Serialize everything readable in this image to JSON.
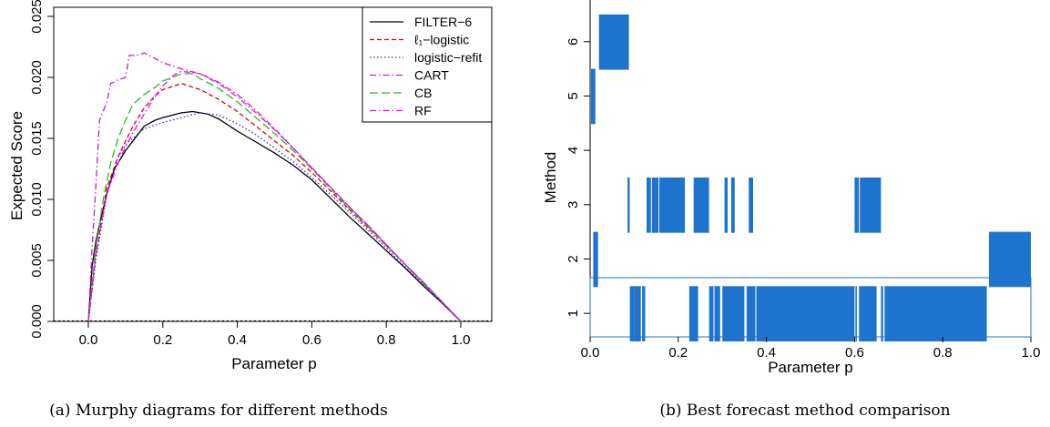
{
  "chart_data": [
    {
      "type": "line",
      "xlabel": "Parameter p",
      "ylabel": "Expected Score",
      "xlim": [
        -0.1,
        1.1
      ],
      "ylim": [
        0,
        0.025
      ],
      "xticks": [
        "0.0",
        "0.2",
        "0.4",
        "0.6",
        "0.8",
        "1.0"
      ],
      "yticks": [
        "0.000",
        "0.005",
        "0.010",
        "0.015",
        "0.020",
        "0.025"
      ],
      "legend_position": "top-right",
      "baseline": 0,
      "caption": "(a) Murphy diagrams for different methods",
      "series": [
        {
          "name": "FILTER−6",
          "color": "#000000",
          "dash": "solid",
          "points": [
            [
              0,
              0
            ],
            [
              0.01,
              0.0045
            ],
            [
              0.02,
              0.0065
            ],
            [
              0.03,
              0.008
            ],
            [
              0.05,
              0.0105
            ],
            [
              0.07,
              0.0125
            ],
            [
              0.1,
              0.014
            ],
            [
              0.13,
              0.0152
            ],
            [
              0.15,
              0.016
            ],
            [
              0.18,
              0.0165
            ],
            [
              0.2,
              0.0167
            ],
            [
              0.25,
              0.0171
            ],
            [
              0.28,
              0.0172
            ],
            [
              0.32,
              0.017
            ],
            [
              0.35,
              0.0166
            ],
            [
              0.4,
              0.0156
            ],
            [
              0.45,
              0.0147
            ],
            [
              0.5,
              0.0138
            ],
            [
              0.55,
              0.0128
            ],
            [
              0.6,
              0.0116
            ],
            [
              0.65,
              0.0101
            ],
            [
              0.7,
              0.0086
            ],
            [
              0.75,
              0.0072
            ],
            [
              0.8,
              0.0058
            ],
            [
              0.85,
              0.0044
            ],
            [
              0.9,
              0.0029
            ],
            [
              0.95,
              0.0015
            ],
            [
              1.0,
              0
            ]
          ]
        },
        {
          "name": "ℓ₁−logistic",
          "color": "#df0000",
          "dash": "dashed",
          "points": [
            [
              0,
              0
            ],
            [
              0.02,
              0.0055
            ],
            [
              0.05,
              0.011
            ],
            [
              0.08,
              0.0135
            ],
            [
              0.1,
              0.0148
            ],
            [
              0.12,
              0.016
            ],
            [
              0.15,
              0.0175
            ],
            [
              0.18,
              0.0185
            ],
            [
              0.2,
              0.019
            ],
            [
              0.25,
              0.0195
            ],
            [
              0.3,
              0.019
            ],
            [
              0.35,
              0.0182
            ],
            [
              0.4,
              0.0172
            ],
            [
              0.45,
              0.016
            ],
            [
              0.5,
              0.0148
            ],
            [
              0.55,
              0.0136
            ],
            [
              0.6,
              0.0122
            ],
            [
              0.65,
              0.0107
            ],
            [
              0.7,
              0.0092
            ],
            [
              0.75,
              0.0077
            ],
            [
              0.8,
              0.0062
            ],
            [
              0.85,
              0.0047
            ],
            [
              0.9,
              0.0031
            ],
            [
              0.95,
              0.0016
            ],
            [
              1.0,
              0
            ]
          ]
        },
        {
          "name": "logistic−refit",
          "color": "#3030cc",
          "dash": "dotted",
          "points": [
            [
              0,
              0
            ],
            [
              0.02,
              0.005
            ],
            [
              0.05,
              0.0105
            ],
            [
              0.08,
              0.0135
            ],
            [
              0.1,
              0.0145
            ],
            [
              0.15,
              0.0158
            ],
            [
              0.2,
              0.0163
            ],
            [
              0.25,
              0.0167
            ],
            [
              0.3,
              0.0171
            ],
            [
              0.35,
              0.0169
            ],
            [
              0.4,
              0.0162
            ],
            [
              0.45,
              0.0153
            ],
            [
              0.5,
              0.0142
            ],
            [
              0.55,
              0.0131
            ],
            [
              0.6,
              0.0118
            ],
            [
              0.65,
              0.0104
            ],
            [
              0.7,
              0.009
            ],
            [
              0.75,
              0.0075
            ],
            [
              0.8,
              0.006
            ],
            [
              0.85,
              0.0045
            ],
            [
              0.9,
              0.003
            ],
            [
              0.95,
              0.0015
            ],
            [
              1.0,
              0
            ]
          ]
        },
        {
          "name": "CART",
          "color": "#c020c0",
          "dash": "dashdot",
          "points": [
            [
              0,
              0
            ],
            [
              0.01,
              0.006
            ],
            [
              0.02,
              0.011
            ],
            [
              0.03,
              0.0165
            ],
            [
              0.05,
              0.018
            ],
            [
              0.06,
              0.0195
            ],
            [
              0.08,
              0.0198
            ],
            [
              0.1,
              0.02
            ],
            [
              0.11,
              0.0218
            ],
            [
              0.13,
              0.0218
            ],
            [
              0.15,
              0.022
            ],
            [
              0.17,
              0.0217
            ],
            [
              0.2,
              0.0212
            ],
            [
              0.25,
              0.0207
            ],
            [
              0.3,
              0.0203
            ],
            [
              0.35,
              0.0196
            ],
            [
              0.4,
              0.0186
            ],
            [
              0.45,
              0.0173
            ],
            [
              0.5,
              0.0158
            ],
            [
              0.55,
              0.0142
            ],
            [
              0.6,
              0.0126
            ],
            [
              0.65,
              0.011
            ],
            [
              0.7,
              0.0094
            ],
            [
              0.75,
              0.0079
            ],
            [
              0.8,
              0.0063
            ],
            [
              0.85,
              0.0047
            ],
            [
              0.9,
              0.0032
            ],
            [
              0.95,
              0.0016
            ],
            [
              1.0,
              0
            ]
          ]
        },
        {
          "name": "CB",
          "color": "#22bb22",
          "dash": "longdash",
          "points": [
            [
              0,
              0
            ],
            [
              0.02,
              0.006
            ],
            [
              0.04,
              0.01
            ],
            [
              0.06,
              0.013
            ],
            [
              0.08,
              0.015
            ],
            [
              0.1,
              0.0165
            ],
            [
              0.12,
              0.0178
            ],
            [
              0.15,
              0.0186
            ],
            [
              0.18,
              0.0192
            ],
            [
              0.2,
              0.0197
            ],
            [
              0.25,
              0.0203
            ],
            [
              0.28,
              0.0203
            ],
            [
              0.3,
              0.0199
            ],
            [
              0.35,
              0.0191
            ],
            [
              0.4,
              0.018
            ],
            [
              0.45,
              0.0167
            ],
            [
              0.5,
              0.0154
            ],
            [
              0.55,
              0.014
            ],
            [
              0.6,
              0.0125
            ],
            [
              0.65,
              0.0109
            ],
            [
              0.7,
              0.0093
            ],
            [
              0.75,
              0.0078
            ],
            [
              0.8,
              0.0062
            ],
            [
              0.85,
              0.0047
            ],
            [
              0.9,
              0.0031
            ],
            [
              0.95,
              0.0016
            ],
            [
              1.0,
              0
            ]
          ]
        },
        {
          "name": "RF",
          "color": "#ff00ff",
          "dash": "dashdot",
          "points": [
            [
              0,
              0
            ],
            [
              0.02,
              0.0055
            ],
            [
              0.05,
              0.0105
            ],
            [
              0.08,
              0.013
            ],
            [
              0.1,
              0.0143
            ],
            [
              0.12,
              0.0155
            ],
            [
              0.15,
              0.017
            ],
            [
              0.18,
              0.0185
            ],
            [
              0.2,
              0.0193
            ],
            [
              0.23,
              0.0202
            ],
            [
              0.25,
              0.0205
            ],
            [
              0.3,
              0.0203
            ],
            [
              0.35,
              0.0195
            ],
            [
              0.4,
              0.0184
            ],
            [
              0.45,
              0.0171
            ],
            [
              0.5,
              0.0157
            ],
            [
              0.55,
              0.0142
            ],
            [
              0.6,
              0.0126
            ],
            [
              0.65,
              0.011
            ],
            [
              0.7,
              0.0094
            ],
            [
              0.75,
              0.0079
            ],
            [
              0.8,
              0.0063
            ],
            [
              0.85,
              0.0047
            ],
            [
              0.9,
              0.0032
            ],
            [
              0.95,
              0.0016
            ],
            [
              1.0,
              0
            ]
          ]
        }
      ]
    },
    {
      "type": "bar",
      "orientation": "horizontal-intervals",
      "xlabel": "Parameter p",
      "ylabel": "Method",
      "xlim": [
        0,
        1
      ],
      "categories": [
        "1",
        "2",
        "3",
        "4",
        "5",
        "6"
      ],
      "xticks": [
        "0.0",
        "0.2",
        "0.4",
        "0.6",
        "0.8",
        "1.0"
      ],
      "color": "#1e74cc",
      "caption": "(b) Best forecast method comparison",
      "intervals": {
        "1": [
          [
            0.09,
            0.1
          ],
          [
            0.1,
            0.115
          ],
          [
            0.118,
            0.125
          ],
          [
            0.225,
            0.245
          ],
          [
            0.27,
            0.28
          ],
          [
            0.282,
            0.295
          ],
          [
            0.3,
            0.35
          ],
          [
            0.355,
            0.375
          ],
          [
            0.377,
            0.6
          ],
          [
            0.602,
            0.605
          ],
          [
            0.61,
            0.65
          ],
          [
            0.66,
            0.665
          ],
          [
            0.668,
            0.9
          ]
        ],
        "2": [
          [
            0.007,
            0.018
          ],
          [
            0.905,
            1.0
          ]
        ],
        "3": [
          [
            0.085,
            0.09
          ],
          [
            0.128,
            0.138
          ],
          [
            0.14,
            0.155
          ],
          [
            0.157,
            0.215
          ],
          [
            0.235,
            0.27
          ],
          [
            0.305,
            0.312
          ],
          [
            0.32,
            0.328
          ],
          [
            0.36,
            0.37
          ],
          [
            0.6,
            0.61
          ],
          [
            0.612,
            0.66
          ]
        ],
        "4": [],
        "5": [
          [
            0.002,
            0.012
          ]
        ],
        "6": [
          [
            0.02,
            0.088
          ]
        ]
      }
    }
  ]
}
